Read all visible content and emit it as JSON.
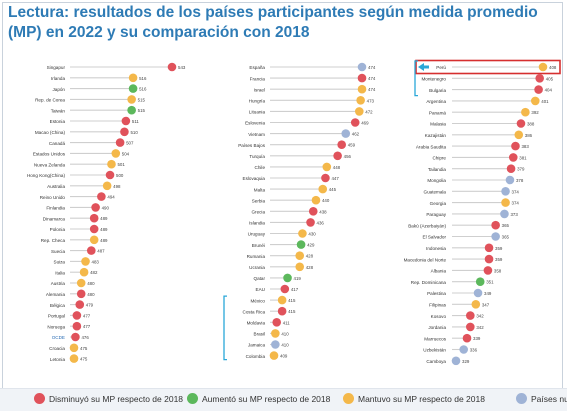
{
  "title": "Lectura: resultados de los países participantes según medida promedio (MP) en 2022 y su comparación con 2018",
  "colors": {
    "decreased": "#e0525b",
    "increased": "#5cb85c",
    "maintained": "#f4b84a",
    "new": "#9fb3d6",
    "bracket": "#2aa7d8",
    "highlight": "#d62f2f",
    "stem": "#cfcfcf"
  },
  "legend": [
    {
      "key": "decreased",
      "label": "Disminuyó su MP respecto de 2018"
    },
    {
      "key": "increased",
      "label": "Aumentó su MP respecto de 2018"
    },
    {
      "key": "maintained",
      "label": "Mantuvo su MP respecto de 2018"
    },
    {
      "key": "new",
      "label": "Países nue"
    }
  ],
  "chart_data": [
    {
      "type": "scatter",
      "panel": "left",
      "points": [
        {
          "country": "Singapur",
          "value": 543,
          "status": "decreased"
        },
        {
          "country": "Irlanda",
          "value": 516,
          "status": "maintained"
        },
        {
          "country": "Japón",
          "value": 516,
          "status": "increased"
        },
        {
          "country": "Rep. de Corea",
          "value": 515,
          "status": "maintained"
        },
        {
          "country": "Taiwán",
          "value": 515,
          "status": "increased"
        },
        {
          "country": "Estonia",
          "value": 511,
          "status": "decreased"
        },
        {
          "country": "Macao (China)",
          "value": 510,
          "status": "decreased"
        },
        {
          "country": "Canadá",
          "value": 507,
          "status": "decreased"
        },
        {
          "country": "Estados Unidos",
          "value": 504,
          "status": "maintained"
        },
        {
          "country": "Nueva Zelanda",
          "value": 501,
          "status": "maintained"
        },
        {
          "country": "Hong Kong(China)",
          "value": 500,
          "status": "decreased"
        },
        {
          "country": "Australia",
          "value": 498,
          "status": "maintained"
        },
        {
          "country": "Reino Unido",
          "value": 494,
          "status": "decreased"
        },
        {
          "country": "Finlandia",
          "value": 490,
          "status": "decreased"
        },
        {
          "country": "Dinamarca",
          "value": 489,
          "status": "decreased"
        },
        {
          "country": "Polonia",
          "value": 489,
          "status": "decreased"
        },
        {
          "country": "Rep. Checa",
          "value": 489,
          "status": "maintained"
        },
        {
          "country": "Suecia",
          "value": 487,
          "status": "decreased"
        },
        {
          "country": "Suiza",
          "value": 483,
          "status": "maintained"
        },
        {
          "country": "Italia",
          "value": 482,
          "status": "maintained"
        },
        {
          "country": "Austria",
          "value": 480,
          "status": "maintained"
        },
        {
          "country": "Alemania",
          "value": 480,
          "status": "decreased"
        },
        {
          "country": "Bélgica",
          "value": 479,
          "status": "decreased"
        },
        {
          "country": "Portugal",
          "value": 477,
          "status": "decreased"
        },
        {
          "country": "Noruega",
          "value": 477,
          "status": "decreased"
        },
        {
          "country": "OCDE",
          "value": 476,
          "status": "decreased"
        },
        {
          "country": "Croacia",
          "value": 475,
          "status": "maintained"
        },
        {
          "country": "Letonia",
          "value": 475,
          "status": "maintained"
        }
      ]
    },
    {
      "type": "scatter",
      "panel": "middle",
      "points": [
        {
          "country": "España",
          "value": 474,
          "status": "new"
        },
        {
          "country": "Francia",
          "value": 474,
          "status": "decreased"
        },
        {
          "country": "Israel",
          "value": 474,
          "status": "maintained"
        },
        {
          "country": "Hungría",
          "value": 473,
          "status": "maintained"
        },
        {
          "country": "Lituania",
          "value": 472,
          "status": "maintained"
        },
        {
          "country": "Eslovenia",
          "value": 469,
          "status": "decreased"
        },
        {
          "country": "Vietnam",
          "value": 462,
          "status": "new"
        },
        {
          "country": "Países Bajos",
          "value": 459,
          "status": "decreased"
        },
        {
          "country": "Turquía",
          "value": 456,
          "status": "decreased"
        },
        {
          "country": "Chile",
          "value": 448,
          "status": "maintained"
        },
        {
          "country": "Eslovaquia",
          "value": 447,
          "status": "decreased"
        },
        {
          "country": "Malta",
          "value": 445,
          "status": "maintained"
        },
        {
          "country": "Serbia",
          "value": 440,
          "status": "maintained"
        },
        {
          "country": "Grecia",
          "value": 438,
          "status": "decreased"
        },
        {
          "country": "Islandia",
          "value": 436,
          "status": "decreased"
        },
        {
          "country": "Uruguay",
          "value": 430,
          "status": "maintained"
        },
        {
          "country": "Brunéi",
          "value": 429,
          "status": "increased"
        },
        {
          "country": "Rumania",
          "value": 428,
          "status": "maintained"
        },
        {
          "country": "Ucrania",
          "value": 428,
          "status": "maintained"
        },
        {
          "country": "Qatar",
          "value": 419,
          "status": "increased"
        },
        {
          "country": "EAU",
          "value": 417,
          "status": "decreased"
        },
        {
          "country": "México",
          "value": 415,
          "status": "maintained"
        },
        {
          "country": "Costa Rica",
          "value": 415,
          "status": "decreased"
        },
        {
          "country": "Moldavia",
          "value": 411,
          "status": "decreased"
        },
        {
          "country": "Brasil",
          "value": 410,
          "status": "maintained"
        },
        {
          "country": "Jamaica",
          "value": 410,
          "status": "new"
        },
        {
          "country": "Colombia",
          "value": 409,
          "status": "maintained"
        }
      ]
    },
    {
      "type": "scatter",
      "panel": "right",
      "points": [
        {
          "country": "Perú",
          "value": 408,
          "status": "maintained",
          "highlight": true
        },
        {
          "country": "Montenegro",
          "value": 405,
          "status": "decreased"
        },
        {
          "country": "Bulgaria",
          "value": 404,
          "status": "decreased"
        },
        {
          "country": "Argentina",
          "value": 401,
          "status": "maintained"
        },
        {
          "country": "Panamá",
          "value": 392,
          "status": "maintained"
        },
        {
          "country": "Malasia",
          "value": 388,
          "status": "decreased"
        },
        {
          "country": "Kazajistán",
          "value": 386,
          "status": "maintained"
        },
        {
          "country": "Arabia Saudita",
          "value": 383,
          "status": "decreased"
        },
        {
          "country": "Chipre",
          "value": 381,
          "status": "decreased"
        },
        {
          "country": "Tailandia",
          "value": 379,
          "status": "decreased"
        },
        {
          "country": "Mongolia",
          "value": 378,
          "status": "new"
        },
        {
          "country": "Guatemala",
          "value": 374,
          "status": "new"
        },
        {
          "country": "Georgia",
          "value": 374,
          "status": "maintained"
        },
        {
          "country": "Paraguay",
          "value": 373,
          "status": "new"
        },
        {
          "country": "Bakú (Azerbaiyán)",
          "value": 365,
          "status": "decreased"
        },
        {
          "country": "El Salvador",
          "value": 365,
          "status": "new"
        },
        {
          "country": "Indonesia",
          "value": 359,
          "status": "decreased"
        },
        {
          "country": "Macedonia del Norte",
          "value": 359,
          "status": "decreased"
        },
        {
          "country": "Albania",
          "value": 358,
          "status": "decreased"
        },
        {
          "country": "Rep. Dominicana",
          "value": 351,
          "status": "increased"
        },
        {
          "country": "Palestina",
          "value": 349,
          "status": "new"
        },
        {
          "country": "Filipinas",
          "value": 347,
          "status": "maintained"
        },
        {
          "country": "Kosovo",
          "value": 342,
          "status": "decreased"
        },
        {
          "country": "Jordania",
          "value": 342,
          "status": "decreased"
        },
        {
          "country": "Marruecos",
          "value": 339,
          "status": "decreased"
        },
        {
          "country": "Uzbekistán",
          "value": 336,
          "status": "new"
        },
        {
          "country": "Camboya",
          "value": 329,
          "status": "new"
        }
      ]
    }
  ]
}
